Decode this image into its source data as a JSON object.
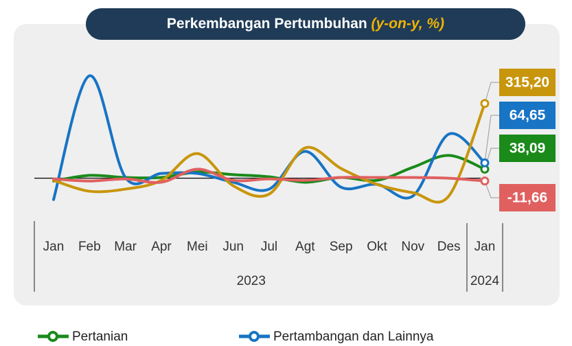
{
  "chart_data": {
    "type": "line",
    "title": "Perkembangan Pertumbuhan",
    "title_note": "(y-on-y, %)",
    "categories": [
      "Jan",
      "Feb",
      "Mar",
      "Apr",
      "Mei",
      "Jun",
      "Jul",
      "Agt",
      "Sep",
      "Okt",
      "Nov",
      "Des",
      "Jan"
    ],
    "year_labels": [
      "2023",
      "2024"
    ],
    "ylim": [
      -175,
      520
    ],
    "zero_line": 0,
    "series": [
      {
        "name": "Pertanian",
        "color": "#1a8a1a",
        "values": [
          -12,
          12,
          3,
          3,
          26,
          15,
          6,
          -17,
          3,
          -9,
          46,
          96,
          38.09
        ],
        "value_labels": [
          null,
          null,
          null,
          null,
          null,
          null,
          null,
          null,
          null,
          null,
          null,
          null,
          "38,09"
        ]
      },
      {
        "name": "Pertambangan dan Lainnya",
        "color": "#1874c4",
        "values": [
          -90,
          432,
          3,
          20,
          20,
          -17,
          -46,
          113,
          -38,
          -26,
          -75,
          186,
          64.65
        ],
        "value_labels": [
          null,
          null,
          null,
          null,
          null,
          null,
          null,
          null,
          null,
          null,
          null,
          null,
          "64,65"
        ]
      },
      {
        "color": "#c8960c",
        "values": [
          -9,
          -55,
          -46,
          -9,
          104,
          -32,
          -67,
          128,
          41,
          -26,
          -61,
          -75,
          315.2
        ],
        "value_labels": [
          null,
          null,
          null,
          null,
          null,
          null,
          null,
          null,
          null,
          null,
          null,
          null,
          "315,20"
        ]
      },
      {
        "color": "#e06060",
        "values": [
          -3,
          -12,
          -3,
          -17,
          38,
          -9,
          -3,
          -9,
          3,
          3,
          3,
          0,
          -11.66
        ],
        "value_labels": [
          null,
          null,
          null,
          null,
          null,
          null,
          null,
          null,
          null,
          null,
          null,
          null,
          "-11,66"
        ]
      }
    ]
  }
}
